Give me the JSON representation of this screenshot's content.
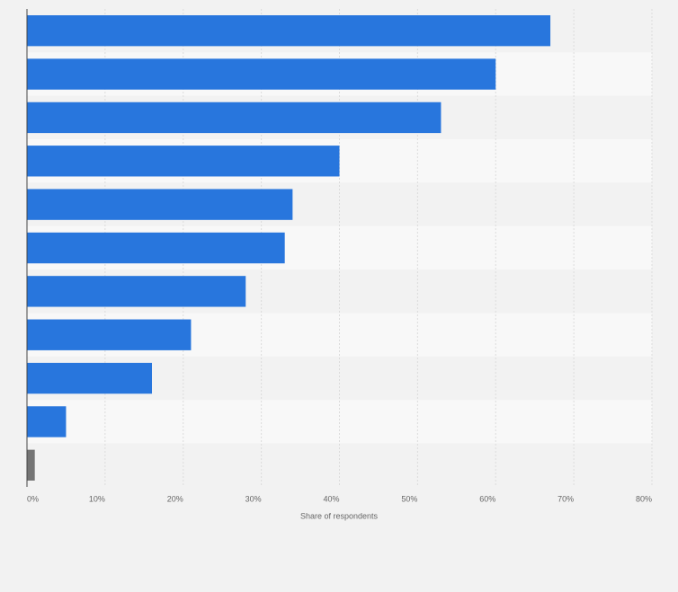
{
  "chart_data": {
    "type": "bar",
    "orientation": "horizontal",
    "categories": [
      null,
      null,
      null,
      null,
      null,
      null,
      null,
      null,
      null,
      null,
      null
    ],
    "values": [
      67,
      60,
      53,
      40,
      34,
      33,
      28,
      21,
      16,
      5,
      1
    ],
    "colors": [
      "#2876dd",
      "#2876dd",
      "#2876dd",
      "#2876dd",
      "#2876dd",
      "#2876dd",
      "#2876dd",
      "#2876dd",
      "#2876dd",
      "#2876dd",
      "#757575"
    ],
    "xlabel": "Share of respondents",
    "xlim": [
      0,
      80
    ],
    "xticks": [
      {
        "value": 0,
        "label": "0%"
      },
      {
        "value": 10,
        "label": "10%"
      },
      {
        "value": 20,
        "label": "20%"
      },
      {
        "value": 30,
        "label": "30%"
      },
      {
        "value": 40,
        "label": "40%"
      },
      {
        "value": 50,
        "label": "50%"
      },
      {
        "value": 60,
        "label": "60%"
      },
      {
        "value": 70,
        "label": "70%"
      },
      {
        "value": 80,
        "label": "80%"
      }
    ],
    "grid": true
  }
}
